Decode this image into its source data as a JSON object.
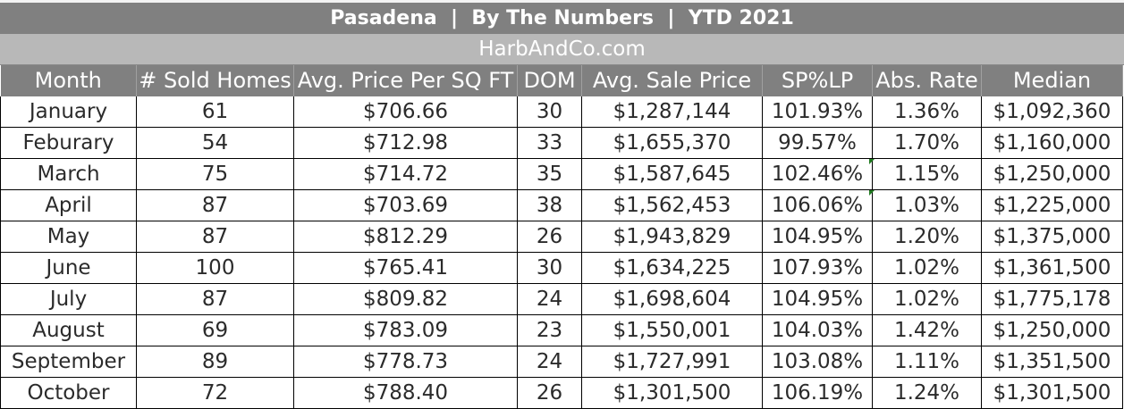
{
  "chart_data": {
    "type": "table",
    "title": "Pasadena  |  By The Numbers  |  YTD 2021",
    "subtitle": "HarbAndCo.com",
    "columns": [
      "Month",
      "# Sold Homes",
      "Avg. Price Per SQ FT",
      "DOM",
      "Avg. Sale Price",
      "SP%LP",
      "Abs. Rate",
      "Median"
    ],
    "rows": [
      [
        "January",
        "61",
        "$706.66",
        "30",
        "$1,287,144",
        "101.93%",
        "1.36%",
        "$1,092,360"
      ],
      [
        "Feburary",
        "54",
        "$712.98",
        "33",
        "$1,655,370",
        "99.57%",
        "1.70%",
        "$1,160,000"
      ],
      [
        "March",
        "75",
        "$714.72",
        "35",
        "$1,587,645",
        "102.46%",
        "1.15%",
        "$1,250,000"
      ],
      [
        "April",
        "87",
        "$703.69",
        "38",
        "$1,562,453",
        "106.06%",
        "1.03%",
        "$1,225,000"
      ],
      [
        "May",
        "87",
        "$812.29",
        "26",
        "$1,943,829",
        "104.95%",
        "1.20%",
        "$1,375,000"
      ],
      [
        "June",
        "100",
        "$765.41",
        "30",
        "$1,634,225",
        "107.93%",
        "1.02%",
        "$1,361,500"
      ],
      [
        "July",
        "87",
        "$809.82",
        "24",
        "$1,698,604",
        "104.95%",
        "1.02%",
        "$1,775,178"
      ],
      [
        "August",
        "69",
        "$783.09",
        "23",
        "$1,550,001",
        "104.03%",
        "1.42%",
        "$1,250,000"
      ],
      [
        "September",
        "89",
        "$778.73",
        "24",
        "$1,727,991",
        "103.08%",
        "1.11%",
        "$1,351,500"
      ],
      [
        "October",
        "72",
        "$788.40",
        "26",
        "$1,301,500",
        "106.19%",
        "1.24%",
        "$1,301,500"
      ]
    ],
    "colors": {
      "header_band": "#808080",
      "subtitle_band": "#b8b8b8",
      "header_text": "#ffffff",
      "cell_text": "#2b2b2b",
      "grid_lines": "#000000",
      "comment_marker": "#1f7a1f"
    }
  }
}
